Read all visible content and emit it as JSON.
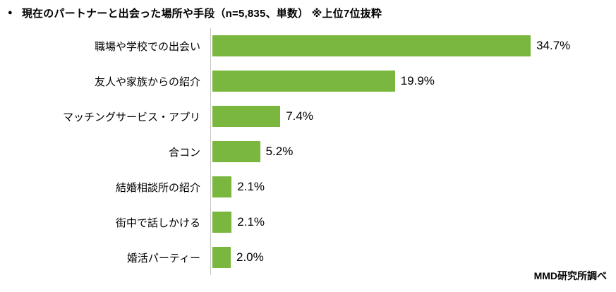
{
  "title": {
    "bullet": "●",
    "text": "現在のパートナーと出会った場所や手段（n=5,835、単数） ※上位7位抜粋"
  },
  "source": "MMD研究所調べ",
  "chart_data": {
    "type": "bar",
    "orientation": "horizontal",
    "title": "現在のパートナーと出会った場所や手段（n=5,835、単数） ※上位7位抜粋",
    "categories": [
      "職場や学校での出会い",
      "友人や家族からの紹介",
      "マッチングサービス・アプリ",
      "合コン",
      "結婚相談所の紹介",
      "街中で話しかける",
      "婚活パーティー"
    ],
    "values": [
      34.7,
      19.9,
      7.4,
      5.2,
      2.1,
      2.1,
      2.0
    ],
    "value_labels": [
      "34.7%",
      "19.9%",
      "7.4%",
      "5.2%",
      "2.1%",
      "2.1%",
      "2.0%"
    ],
    "unit": "%",
    "bar_color": "#7ab73e",
    "axis_line_color": "#c6c6c6",
    "xlim": [
      0,
      40
    ],
    "grid": false,
    "legend": false,
    "xlabel": "",
    "ylabel": ""
  }
}
